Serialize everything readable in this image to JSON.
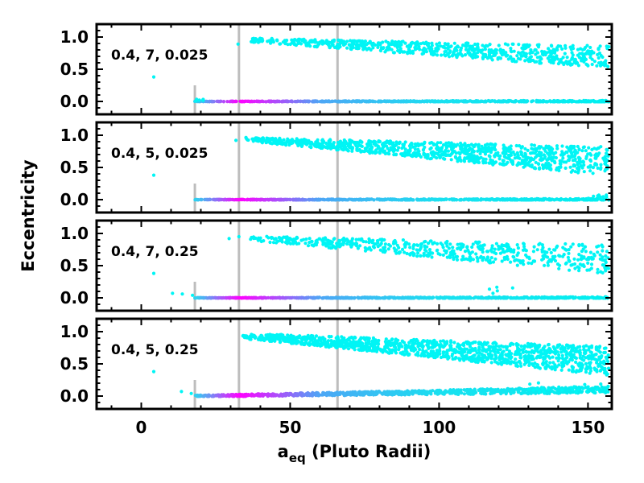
{
  "chart_data": {
    "type": "scatter",
    "xlabel": "a",
    "xlabel_sub": "eq",
    "xlabel_suffix": " (Pluto Radii)",
    "ylabel": "Eccentricity",
    "xlim": [
      -15,
      158
    ],
    "ylim": [
      -0.2,
      1.2
    ],
    "x_ticks": [
      0,
      50,
      100,
      150
    ],
    "y_ticks": [
      0.0,
      0.5,
      1.0
    ],
    "x_tick_labels": [
      "0",
      "50",
      "100",
      "150"
    ],
    "y_tick_labels": [
      "0.0",
      "0.5",
      "1.0"
    ],
    "vertical_lines": [
      {
        "x": 18,
        "y_top": 0.25,
        "color": "#bdbdbd"
      },
      {
        "x": 32.8,
        "y_top": 1.2,
        "color": "#bdbdbd"
      },
      {
        "x": 65.9,
        "y_top": 1.2,
        "color": "#bdbdbd"
      }
    ],
    "point_color_high_e": "#00f5f5",
    "gradient_colors": [
      "#29d6f0",
      "#ff00ff",
      "#4da6f5",
      "#1ae0f0",
      "#00f0f0"
    ],
    "panels": [
      {
        "label": "0.4, 7, 0.025",
        "outliers": [
          [
            4.2,
            0.38
          ],
          [
            32.5,
            0.89
          ]
        ],
        "upper_branch": {
          "x_range": [
            36,
            157
          ],
          "e_start": 0.95,
          "e_end": 0.65,
          "spread_start": 0.06,
          "spread_end": 0.35,
          "count": 700
        },
        "lower_branch": {
          "x_range": [
            18,
            157
          ],
          "e_start": 0.0,
          "e_end": 0.0,
          "spread": 0.012,
          "count": 700
        },
        "scatter_lower": {
          "x_range": [
            18,
            22
          ],
          "e": 0.03,
          "count": 6
        }
      },
      {
        "label": "0.4, 5, 0.025",
        "outliers": [
          [
            4.2,
            0.38
          ],
          [
            31.8,
            0.92
          ]
        ],
        "upper_branch": {
          "x_range": [
            35,
            157
          ],
          "e_start": 0.93,
          "e_end": 0.55,
          "spread_start": 0.06,
          "spread_end": 0.45,
          "count": 1000
        },
        "lower_branch": {
          "x_range": [
            18,
            157
          ],
          "e_start": 0.0,
          "e_end": 0.0,
          "spread": 0.012,
          "count": 700
        },
        "scatter_lower": {
          "x_range": [
            150,
            157
          ],
          "e": 0.06,
          "count": 10
        }
      },
      {
        "label": "0.4, 7, 0.25",
        "outliers": [
          [
            4.2,
            0.38
          ],
          [
            29.5,
            0.92
          ],
          [
            32.8,
            0.95
          ],
          [
            10.5,
            0.07
          ],
          [
            13.8,
            0.06
          ],
          [
            17.2,
            0.04
          ]
        ],
        "upper_branch": {
          "x_range": [
            36,
            157
          ],
          "e_start": 0.92,
          "e_end": 0.55,
          "spread_start": 0.07,
          "spread_end": 0.45,
          "count": 550
        },
        "lower_branch": {
          "x_range": [
            18,
            157
          ],
          "e_start": 0.0,
          "e_end": 0.0,
          "spread": 0.012,
          "count": 700
        },
        "scatter_lower": {
          "x_range": [
            115,
            130
          ],
          "e": 0.15,
          "count": 5
        }
      },
      {
        "label": "0.4, 5, 0.25",
        "outliers": [
          [
            4.2,
            0.38
          ],
          [
            13.5,
            0.07
          ],
          [
            16.8,
            0.04
          ]
        ],
        "upper_branch": {
          "x_range": [
            33,
            157
          ],
          "e_start": 0.93,
          "e_end": 0.5,
          "spread_start": 0.08,
          "spread_end": 0.45,
          "count": 1300
        },
        "lower_branch": {
          "x_range": [
            18,
            157
          ],
          "e_start": 0.0,
          "e_end": 0.1,
          "spread": 0.04,
          "count": 900
        },
        "scatter_lower": {
          "x_range": [
            130,
            157
          ],
          "e": 0.17,
          "count": 25
        }
      }
    ]
  }
}
